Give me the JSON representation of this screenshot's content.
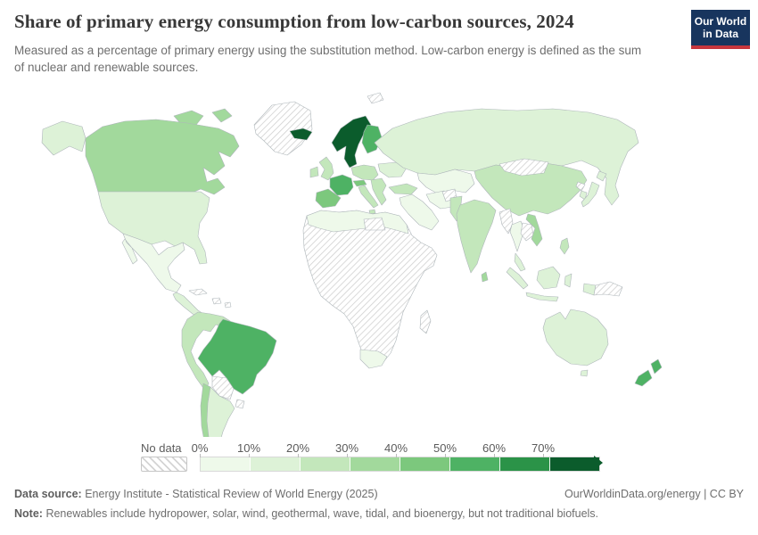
{
  "header": {
    "title": "Share of primary energy consumption from low-carbon sources, 2024",
    "subtitle": "Measured as a percentage of primary energy using the substitution method. Low-carbon energy is defined as the sum of nuclear and renewable sources.",
    "logo": {
      "line1": "Our World",
      "line2": "in Data",
      "bg_color": "#18355e",
      "accent_color": "#c7363d"
    }
  },
  "chart_data": {
    "type": "heatmap",
    "subtype": "choropleth-world-map",
    "title": "Share of primary energy consumption from low-carbon sources",
    "year": "2024",
    "unit": "%",
    "legend": {
      "no_data_label": "No data",
      "no_data_pattern": "diagonal-hatch",
      "tick_labels": [
        "0%",
        "10%",
        "20%",
        "30%",
        "40%",
        "50%",
        "60%",
        "70%"
      ],
      "bucket_ranges": [
        "0-10%",
        "10-20%",
        "20-30%",
        "30-40%",
        "40-50%",
        "50-60%",
        "60-70%",
        "70%+"
      ],
      "bucket_colors": [
        "#eef9ea",
        "#ddf2d7",
        "#c3e7bb",
        "#a2d99c",
        "#7cc87d",
        "#4eb264",
        "#2b9348",
        "#0b5c2c"
      ],
      "border_color": "#aeb6ba"
    },
    "regions": {
      "greenland": "no-data",
      "arctic-islands": 3,
      "svalbard": "no-data",
      "alaska": 1,
      "canada": 3,
      "usa": 1,
      "mexico": 0,
      "central-america": 1,
      "caribbean": "no-data",
      "andes-north": 2,
      "brazil": 5,
      "bolivia-paraguay": "no-data",
      "uruguay": "no-data",
      "argentina": 1,
      "chile": 3,
      "iceland": 7,
      "norway-sweden": 7,
      "finland": 5,
      "uk": 2,
      "ireland": 2,
      "france": 5,
      "iberia": 4,
      "central-europe": 2,
      "alpine": 4,
      "italy": 2,
      "balkans": 2,
      "ukraine": 1,
      "russia": 1,
      "turkey": 2,
      "central-asia": 0,
      "iran": 0,
      "arabia": 0,
      "north-africa": 0,
      "libya": "no-data",
      "africa-subsaharan": "no-data",
      "south-africa": 0,
      "madagascar": "no-data",
      "india": 2,
      "pakistan": 2,
      "afghanistan": "no-data",
      "sri-lanka": 3,
      "china": 2,
      "mongolia": "no-data",
      "north-korea": "no-data",
      "south-korea": 1,
      "japan": 1,
      "myanmar": "no-data",
      "thailand": 0,
      "laos-cambodia": "no-data",
      "vietnam": 3,
      "malaysia": 1,
      "indonesia": 1,
      "philippines": 2,
      "new-guinea": "no-data",
      "australia": 1,
      "tasmania": 1,
      "new-zealand": 5
    }
  },
  "footer": {
    "data_source_label": "Data source:",
    "data_source": "Energy Institute - Statistical Review of World Energy (2025)",
    "link": "OurWorldinData.org/energy | CC BY",
    "note_label": "Note:",
    "note": "Renewables include hydropower, solar, wind, geothermal, wave, tidal, and bioenergy, but not traditional biofuels."
  }
}
